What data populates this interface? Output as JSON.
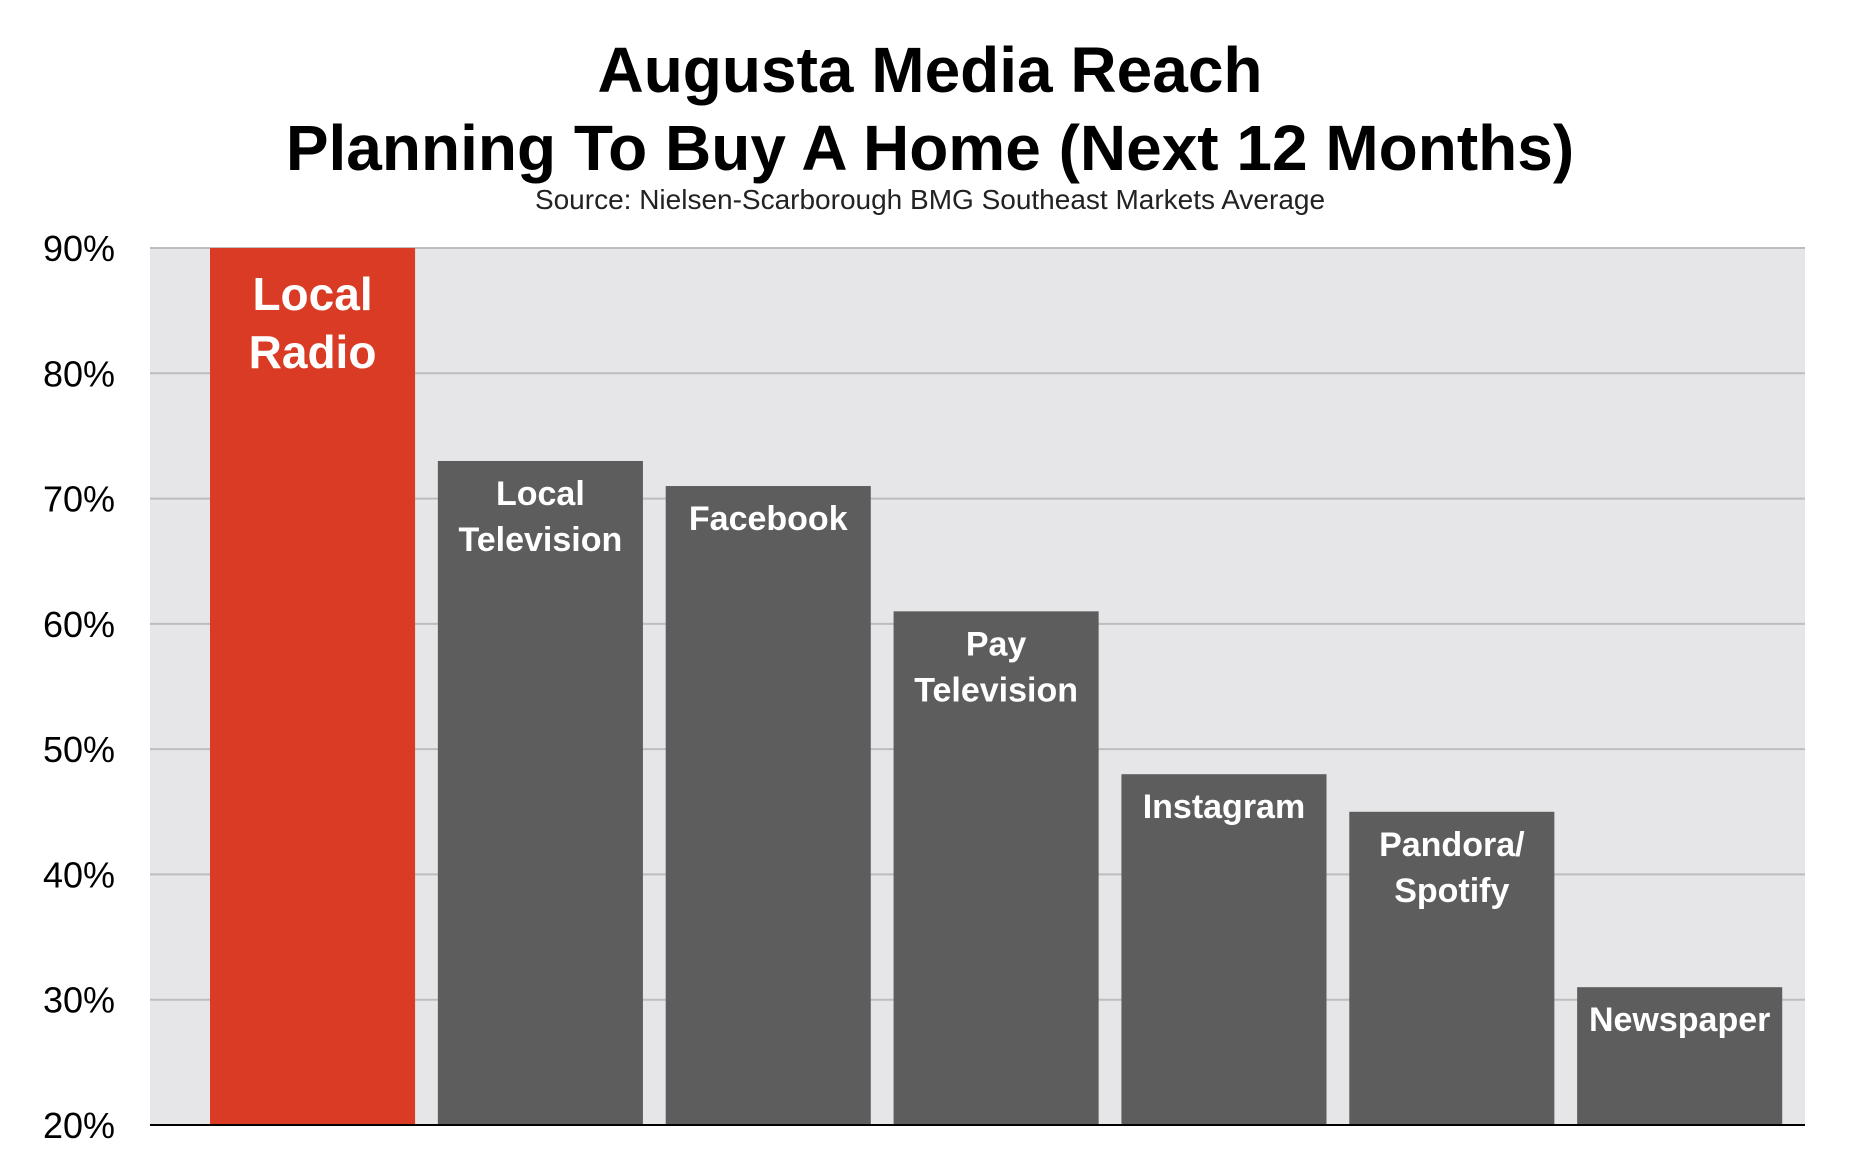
{
  "chart_data": {
    "type": "bar",
    "title_lines": [
      "Augusta Media Reach",
      "Planning To Buy A Home (Next 12 Months)"
    ],
    "subtitle": "Source: Nielsen-Scarborough BMG Southeast Markets Average",
    "xlabel": "",
    "ylabel": "",
    "categories": [
      "Local Radio",
      "Local Television",
      "Facebook",
      "Pay Television",
      "Instagram",
      "Pandora/ Spotify",
      "Newspaper"
    ],
    "category_label_lines": [
      [
        "Local",
        "Radio"
      ],
      [
        "Local",
        "Television"
      ],
      [
        "Facebook"
      ],
      [
        "Pay",
        "Television"
      ],
      [
        "Instagram"
      ],
      [
        "Pandora/",
        "Spotify"
      ],
      [
        "Newspaper"
      ]
    ],
    "values": [
      90,
      73,
      71,
      61,
      48,
      45,
      31
    ],
    "ylim": [
      20,
      90
    ],
    "yticks": [
      20,
      30,
      40,
      50,
      60,
      70,
      80,
      90
    ],
    "ytick_labels": [
      "20%",
      "30%",
      "40%",
      "50%",
      "60%",
      "70%",
      "80%",
      "90%"
    ],
    "grid": true,
    "legend": "none",
    "colors": {
      "highlight": "#d93b25",
      "default": "#5d5d5d",
      "plot_background": "#e6e6e9",
      "gridline": "#bdbdc0"
    },
    "highlight_index": 0
  }
}
